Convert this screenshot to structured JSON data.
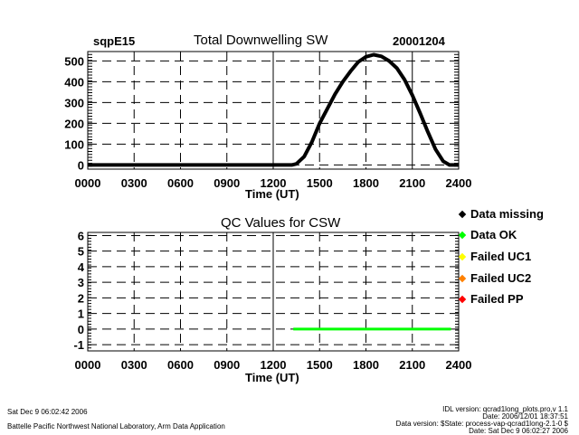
{
  "chart_data": [
    {
      "type": "line",
      "title": "Total Downwelling SW",
      "site": "sqpE15",
      "date": "20001204",
      "xlabel": "Time (UT)",
      "ylabel": "",
      "xlim": [
        0,
        24
      ],
      "ylim": [
        -20,
        545
      ],
      "xticks": [
        "0000",
        "0300",
        "0600",
        "0900",
        "1200",
        "1500",
        "1800",
        "2100",
        "2400"
      ],
      "yticks": [
        "0",
        "100",
        "200",
        "300",
        "400",
        "500"
      ],
      "grid": true,
      "series": [
        {
          "name": "Total Downwelling SW",
          "color": "#000000",
          "x": [
            0,
            6,
            12,
            13.2,
            13.5,
            14,
            14.5,
            15,
            15.5,
            16,
            16.5,
            17,
            17.5,
            18,
            18.5,
            19,
            19.5,
            20,
            20.5,
            21,
            21.5,
            22,
            22.5,
            23,
            23.4,
            24
          ],
          "y": [
            0,
            0,
            0,
            0,
            5,
            40,
            110,
            200,
            270,
            340,
            400,
            450,
            495,
            520,
            530,
            522,
            500,
            465,
            410,
            335,
            250,
            160,
            75,
            18,
            0,
            0
          ]
        }
      ]
    },
    {
      "type": "line",
      "title": "QC Values for CSW",
      "xlabel": "Time (UT)",
      "xlim": [
        0,
        24
      ],
      "ylim": [
        -1.4,
        6.2
      ],
      "xticks": [
        "0000",
        "0300",
        "0600",
        "0900",
        "1200",
        "1500",
        "1800",
        "2100",
        "2400"
      ],
      "yticks": [
        "-1",
        "0",
        "1",
        "2",
        "3",
        "4",
        "5",
        "6"
      ],
      "grid": true,
      "series": [
        {
          "name": "Data OK",
          "color": "#00ff00",
          "x": [
            13.3,
            23.5
          ],
          "y": [
            0,
            0
          ]
        }
      ],
      "legend": [
        {
          "label": "Data missing",
          "color": "#000000"
        },
        {
          "label": "Data OK",
          "color": "#00ff00"
        },
        {
          "label": "Failed UC1",
          "color": "#ffff00"
        },
        {
          "label": "Failed UC2",
          "color": "#ff8000"
        },
        {
          "label": "Failed PP",
          "color": "#ff0000"
        }
      ]
    }
  ],
  "footer": {
    "left_date": "Sat Dec  9 06:02:42 2006",
    "left_org": "Battelle Pacific Northwest National Laboratory, Arm Data Application",
    "right_line1": "IDL version: qcrad1long_plots.pro,v 1.1",
    "right_line2": "Date: 2006/12/01 18:37:51",
    "right_line3": "Data version: $State: process-vap-qcrad1long-2.1-0 $",
    "right_line4": "Date: Sat Dec  9 06:02:27 2006"
  }
}
